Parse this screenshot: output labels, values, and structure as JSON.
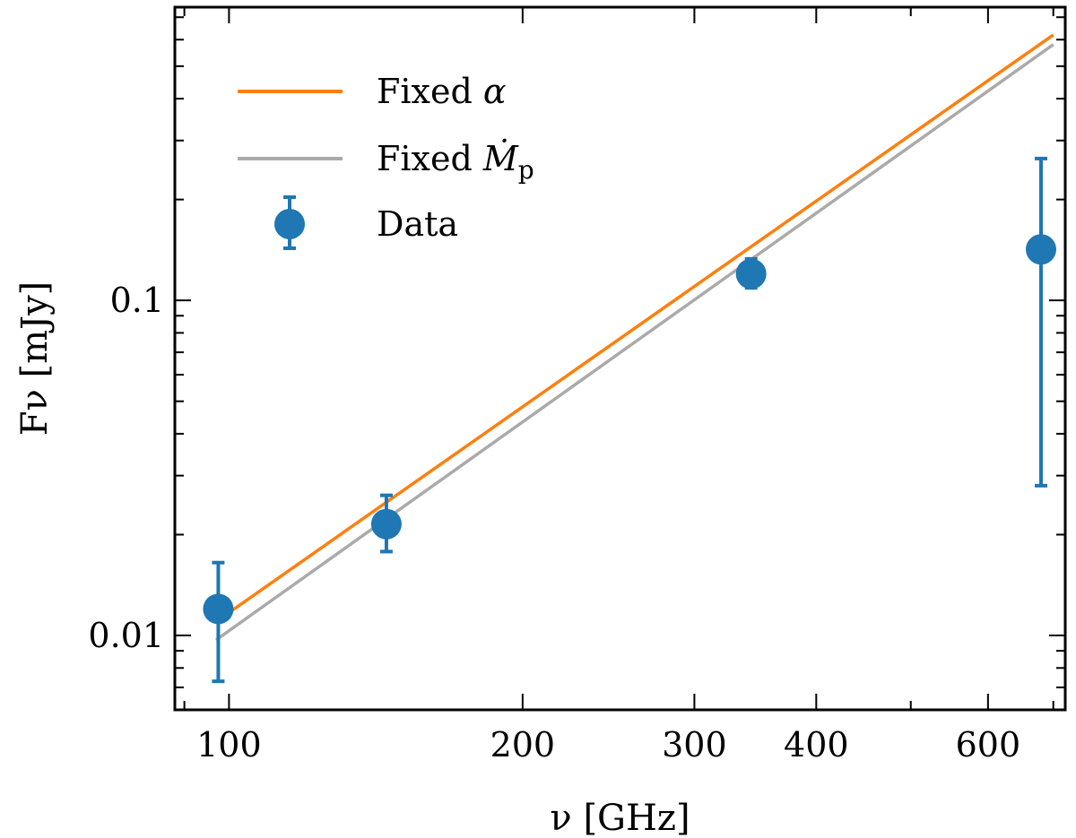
{
  "chart_data": {
    "type": "scatter",
    "x_scale": "log",
    "y_scale": "log",
    "xlim": [
      88,
      720
    ],
    "ylim": [
      0.006,
      0.75
    ],
    "xlabel": "ν [GHz]",
    "ylabel": "Fν [mJy]",
    "x_tick_labels": [
      {
        "value": 100,
        "label": "100"
      },
      {
        "value": 200,
        "label": "200"
      },
      {
        "value": 300,
        "label": "300"
      },
      {
        "value": 400,
        "label": "400"
      },
      {
        "value": 600,
        "label": "600"
      }
    ],
    "y_tick_labels": [
      {
        "value": 0.01,
        "label": "0.01"
      },
      {
        "value": 0.1,
        "label": "0.1"
      }
    ],
    "series": [
      {
        "name": "Fixed α",
        "kind": "line",
        "color": "#ff7f0e",
        "x": [
          97,
          700
        ],
        "y": [
          0.011,
          0.62
        ]
      },
      {
        "name": "Fixed Ṁp",
        "kind": "line",
        "color": "#aaaaaa",
        "x": [
          97,
          700
        ],
        "y": [
          0.0097,
          0.58
        ]
      },
      {
        "name": "Data",
        "kind": "errorbar",
        "color": "#1f77b4",
        "x": [
          97.5,
          145,
          343,
          680
        ],
        "y": [
          0.012,
          0.0215,
          0.12,
          0.142
        ],
        "y_low": [
          0.0073,
          0.0178,
          0.109,
          0.028
        ],
        "y_high": [
          0.0165,
          0.0262,
          0.133,
          0.265
        ]
      }
    ],
    "legend": {
      "placement": "top-left",
      "entries": [
        {
          "label_main": "Fixed ",
          "label_sym": "α",
          "label_sub": "",
          "color": "#ff7f0e",
          "marker": "line"
        },
        {
          "label_main": "Fixed ",
          "label_sym": "Ṁ",
          "label_sub": "p",
          "color": "#aaaaaa",
          "marker": "line"
        },
        {
          "label_main": "Data",
          "label_sym": "",
          "label_sub": "",
          "color": "#1f77b4",
          "marker": "errorbar-dot"
        }
      ]
    }
  }
}
